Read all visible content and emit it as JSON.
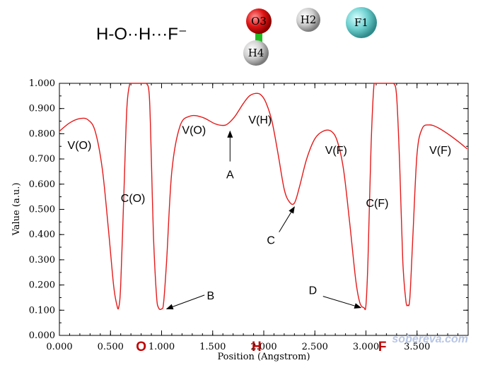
{
  "header": {
    "formula": "H-O··H···F⁻",
    "atoms": [
      {
        "label": "O3",
        "color": "#e01515"
      },
      {
        "label": "H4",
        "color": "#cfcfcf"
      },
      {
        "label": "H2",
        "color": "#cfcfcf"
      },
      {
        "label": "F1",
        "color": "#6fd0d0"
      }
    ],
    "bond_color": "#22bb22"
  },
  "watermark": "sobereva.com",
  "chart_data": {
    "type": "line",
    "xlabel": "Position (Angstrom)",
    "ylabel": "Value (a.u.)",
    "xlim": [
      0,
      4.0
    ],
    "ylim": [
      0,
      1.0
    ],
    "xticks": [
      "0.000",
      "0.500",
      "1.000",
      "1.500",
      "2.000",
      "2.500",
      "3.000",
      "3.500"
    ],
    "yticks": [
      "0.000",
      "0.100",
      "0.200",
      "0.300",
      "0.400",
      "0.500",
      "0.600",
      "0.700",
      "0.800",
      "0.900",
      "1.000"
    ],
    "grid": false,
    "line_color": "#e41a1a",
    "series": [
      {
        "x": [
          0.0,
          0.1,
          0.2,
          0.28,
          0.35,
          0.42,
          0.48,
          0.53,
          0.56,
          0.58,
          0.6,
          0.63,
          0.66,
          0.69,
          0.71,
          0.73,
          0.76,
          0.8,
          0.85,
          0.88,
          0.9,
          0.92,
          0.95,
          0.97,
          1.0,
          1.02,
          1.05,
          1.1,
          1.18,
          1.28,
          1.4,
          1.52,
          1.6,
          1.65,
          1.72,
          1.8,
          1.86,
          1.92,
          1.97,
          2.02,
          2.08,
          2.14,
          2.2,
          2.25,
          2.3,
          2.35,
          2.42,
          2.5,
          2.58,
          2.66,
          2.72,
          2.78,
          2.84,
          2.9,
          2.94,
          2.98,
          3.0,
          3.02,
          3.05,
          3.08,
          3.11,
          3.14,
          3.17,
          3.22,
          3.27,
          3.3,
          3.33,
          3.36,
          3.39,
          3.41,
          3.43,
          3.46,
          3.5,
          3.55,
          3.62,
          3.7,
          3.8,
          3.9,
          3.99
        ],
        "y": [
          0.81,
          0.843,
          0.86,
          0.855,
          0.81,
          0.66,
          0.42,
          0.2,
          0.125,
          0.11,
          0.2,
          0.55,
          0.9,
          1.0,
          1.0,
          1.0,
          1.0,
          1.0,
          1.0,
          0.95,
          0.7,
          0.4,
          0.16,
          0.11,
          0.105,
          0.13,
          0.3,
          0.65,
          0.83,
          0.87,
          0.865,
          0.84,
          0.833,
          0.84,
          0.87,
          0.92,
          0.95,
          0.96,
          0.955,
          0.925,
          0.85,
          0.72,
          0.58,
          0.53,
          0.525,
          0.59,
          0.7,
          0.78,
          0.81,
          0.81,
          0.77,
          0.66,
          0.45,
          0.22,
          0.13,
          0.11,
          0.12,
          0.3,
          0.75,
          1.0,
          1.0,
          1.0,
          1.0,
          1.0,
          1.0,
          0.95,
          0.68,
          0.3,
          0.14,
          0.12,
          0.15,
          0.4,
          0.72,
          0.82,
          0.835,
          0.825,
          0.8,
          0.77,
          0.74
        ]
      }
    ],
    "annotations": [
      {
        "text": "V(O)",
        "x": 0.08,
        "y": 0.74
      },
      {
        "text": "C(O)",
        "x": 0.6,
        "y": 0.53
      },
      {
        "text": "V(O)",
        "x": 1.2,
        "y": 0.8
      },
      {
        "text": "V(H)",
        "x": 1.85,
        "y": 0.84
      },
      {
        "text": "V(F)",
        "x": 2.6,
        "y": 0.72
      },
      {
        "text": "C(F)",
        "x": 3.0,
        "y": 0.51
      },
      {
        "text": "V(F)",
        "x": 3.62,
        "y": 0.72
      }
    ],
    "arrows": [
      {
        "text": "A",
        "text_x": 1.67,
        "text_y": 0.64,
        "from_x": 1.67,
        "from_y": 0.69,
        "to_x": 1.67,
        "to_y": 0.81
      },
      {
        "text": "B",
        "text_x": 1.48,
        "text_y": 0.16,
        "from_x": 1.42,
        "from_y": 0.16,
        "to_x": 1.05,
        "to_y": 0.105
      },
      {
        "text": "C",
        "text_x": 2.07,
        "text_y": 0.38,
        "from_x": 2.15,
        "from_y": 0.41,
        "to_x": 2.3,
        "to_y": 0.51
      },
      {
        "text": "D",
        "text_x": 2.48,
        "text_y": 0.18,
        "from_x": 2.58,
        "from_y": 0.155,
        "to_x": 2.95,
        "to_y": 0.11
      }
    ],
    "position_markers": [
      {
        "text": "O",
        "x": 0.8
      },
      {
        "text": "H",
        "x": 1.93
      },
      {
        "text": "F",
        "x": 3.16
      }
    ]
  }
}
